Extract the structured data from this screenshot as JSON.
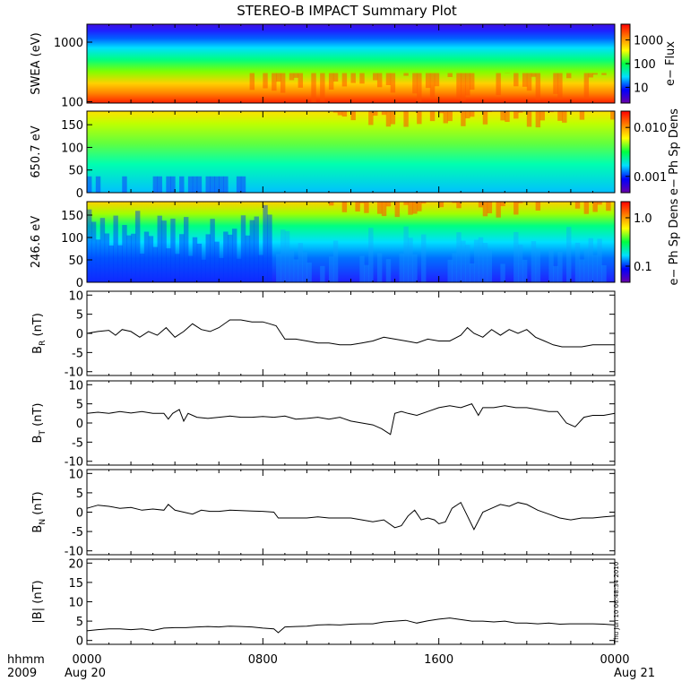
{
  "title": "STEREO-B IMPACT Summary Plot",
  "timestamp": "Thu Jun 10 06:48:34 2010",
  "bottom_labels": {
    "hhmm": "hhmm",
    "year": "2009",
    "start_day": "Aug 20",
    "end_day": "Aug 21"
  },
  "x_axis": {
    "ticks": [
      "0000",
      "0800",
      "1600",
      "0000"
    ],
    "range_hours": [
      0,
      24
    ]
  },
  "colors": {
    "line": "#000000",
    "colormap": [
      "#6a00a8",
      "#0000ff",
      "#00e0ff",
      "#00ff40",
      "#ffff00",
      "#ff8000",
      "#ff0000"
    ]
  },
  "chart_data": [
    {
      "type": "heatmap",
      "ylabel": "SWEA (eV)",
      "yscale": "log",
      "ylim": [
        95,
        2000
      ],
      "yticks": [
        "1000",
        "100"
      ],
      "colorbar": {
        "label": "e− Flux",
        "scale": "log",
        "ticks": [
          "1000",
          "100",
          "10"
        ]
      },
      "description_values": {
        "low_energy_flux": "high (orange-red)",
        "high_energy_flux": "low (blue)"
      }
    },
    {
      "type": "heatmap",
      "ylabel": "650.7 eV",
      "ylim": [
        0,
        180
      ],
      "yticks": [
        "150",
        "100",
        "50",
        "0"
      ],
      "colorbar": {
        "label": "e− Ph Sp Dens",
        "scale": "log",
        "ticks": [
          "0.010",
          "0.001"
        ]
      }
    },
    {
      "type": "heatmap",
      "ylabel": "246.6 eV",
      "ylim": [
        0,
        180
      ],
      "yticks": [
        "150",
        "100",
        "50",
        "0"
      ],
      "colorbar": {
        "label": "e− Ph Sp Dens",
        "scale": "log",
        "ticks": [
          "1.0",
          "0.1"
        ]
      }
    },
    {
      "type": "line",
      "ylabel_main": "B",
      "ylabel_sub": "R",
      "ylabel_unit": "(nT)",
      "ylim": [
        -11,
        11
      ],
      "yticks": [
        "10",
        "5",
        "0",
        "-5",
        "-10"
      ],
      "x": [
        0,
        0.5,
        1,
        1.3,
        1.6,
        2,
        2.4,
        2.8,
        3.2,
        3.6,
        4,
        4.4,
        4.8,
        5.2,
        5.6,
        6,
        6.5,
        7,
        7.5,
        8,
        8.3,
        8.6,
        9,
        9.5,
        10,
        10.5,
        11,
        11.5,
        12,
        12.5,
        13,
        13.5,
        14,
        14.5,
        15,
        15.5,
        16,
        16.5,
        17,
        17.3,
        17.6,
        18,
        18.4,
        18.8,
        19.2,
        19.6,
        20,
        20.4,
        20.8,
        21.2,
        21.6,
        22,
        22.5,
        23,
        23.5,
        24
      ],
      "y": [
        0,
        0.5,
        0.8,
        -0.5,
        1,
        0.5,
        -1,
        0.5,
        -0.5,
        1.5,
        -1,
        0.5,
        2.5,
        1,
        0.5,
        1.5,
        3.5,
        3.5,
        3,
        3,
        2.5,
        2,
        -1.5,
        -1.5,
        -2,
        -2.5,
        -2.5,
        -3,
        -3,
        -2.5,
        -2,
        -1,
        -1.5,
        -2,
        -2.5,
        -1.5,
        -2,
        -2,
        -0.5,
        1.5,
        0,
        -1,
        1,
        -0.5,
        1,
        0,
        1,
        -1,
        -2,
        -3,
        -3.5,
        -3.5,
        -3.5,
        -3,
        -3,
        -3
      ]
    },
    {
      "type": "line",
      "ylabel_main": "B",
      "ylabel_sub": "T",
      "ylabel_unit": "(nT)",
      "ylim": [
        -11,
        11
      ],
      "yticks": [
        "10",
        "5",
        "0",
        "-5",
        "-10"
      ],
      "x": [
        0,
        0.5,
        1,
        1.5,
        2,
        2.5,
        3,
        3.5,
        3.7,
        3.9,
        4.2,
        4.4,
        4.6,
        5,
        5.5,
        6,
        6.5,
        7,
        7.5,
        8,
        8.5,
        9,
        9.5,
        10,
        10.5,
        11,
        11.5,
        12,
        12.5,
        13,
        13.4,
        13.8,
        14,
        14.3,
        14.6,
        15,
        15.5,
        16,
        16.5,
        17,
        17.5,
        17.8,
        18,
        18.5,
        19,
        19.5,
        20,
        20.5,
        21,
        21.4,
        21.8,
        22.2,
        22.6,
        23,
        23.5,
        24
      ],
      "y": [
        2.5,
        2.8,
        2.5,
        3,
        2.6,
        3,
        2.5,
        2.5,
        1,
        2.5,
        3.5,
        0.5,
        2.5,
        1.5,
        1.2,
        1.5,
        1.8,
        1.5,
        1.5,
        1.7,
        1.5,
        1.8,
        1,
        1.2,
        1.5,
        1,
        1.5,
        0.5,
        0,
        -0.5,
        -1.5,
        -3,
        2.5,
        3,
        2.5,
        2,
        3,
        4,
        4.5,
        4,
        5,
        2,
        4,
        4,
        4.5,
        4,
        4,
        3.5,
        3,
        3,
        0,
        -1,
        1.5,
        2,
        2,
        2.5
      ]
    },
    {
      "type": "line",
      "ylabel_main": "B",
      "ylabel_sub": "N",
      "ylabel_unit": "(nT)",
      "ylim": [
        -11,
        11
      ],
      "yticks": [
        "10",
        "5",
        "0",
        "-5",
        "-10"
      ],
      "x": [
        0,
        0.5,
        1,
        1.5,
        2,
        2.5,
        3,
        3.5,
        3.7,
        4,
        4.4,
        4.8,
        5.2,
        5.6,
        6,
        6.5,
        7,
        7.5,
        8,
        8.5,
        8.7,
        9,
        9.5,
        10,
        10.5,
        11,
        11.5,
        12,
        12.5,
        13,
        13.5,
        14,
        14.3,
        14.6,
        14.9,
        15.2,
        15.5,
        15.8,
        16,
        16.3,
        16.6,
        17,
        17.3,
        17.6,
        18,
        18.4,
        18.8,
        19.2,
        19.6,
        20,
        20.5,
        21,
        21.5,
        22,
        22.5,
        23,
        23.5,
        24
      ],
      "y": [
        1,
        1.8,
        1.5,
        1,
        1.2,
        0.5,
        0.8,
        0.5,
        2,
        0.5,
        0,
        -0.5,
        0.5,
        0.2,
        0.2,
        0.5,
        0.4,
        0.3,
        0.2,
        0,
        -1.5,
        -1.5,
        -1.5,
        -1.5,
        -1.2,
        -1.5,
        -1.5,
        -1.5,
        -2,
        -2.5,
        -2,
        -4,
        -3.5,
        -1,
        0.5,
        -2,
        -1.5,
        -2,
        -3,
        -2.5,
        1,
        2.5,
        -1,
        -4.5,
        0,
        1,
        2,
        1.5,
        2.5,
        2,
        0.5,
        -0.5,
        -1.5,
        -2,
        -1.5,
        -1.5,
        -1.2,
        -1
      ]
    },
    {
      "type": "line",
      "ylabel_main": "|B|",
      "ylabel_unit": "(nT)",
      "ylim": [
        -1,
        21
      ],
      "yticks": [
        "20",
        "15",
        "10",
        "5",
        "0"
      ],
      "x": [
        0,
        0.5,
        1,
        1.5,
        2,
        2.5,
        3,
        3.5,
        4,
        4.5,
        5,
        5.5,
        6,
        6.5,
        7,
        7.5,
        8,
        8.5,
        8.7,
        9,
        9.5,
        10,
        10.5,
        11,
        11.5,
        12,
        12.5,
        13,
        13.5,
        14,
        14.5,
        15,
        15.5,
        16,
        16.5,
        17,
        17.5,
        18,
        18.5,
        19,
        19.5,
        20,
        20.5,
        21,
        21.5,
        22,
        22.5,
        23,
        23.5,
        24
      ],
      "y": [
        2.5,
        2.8,
        3,
        3,
        2.8,
        3,
        2.6,
        3.2,
        3.3,
        3.3,
        3.5,
        3.6,
        3.5,
        3.7,
        3.6,
        3.5,
        3.2,
        3,
        2,
        3.5,
        3.6,
        3.7,
        4,
        4.1,
        4,
        4.2,
        4.3,
        4.3,
        4.8,
        5,
        5.2,
        4.5,
        5.1,
        5.5,
        5.8,
        5.4,
        5,
        5,
        4.8,
        5,
        4.5,
        4.5,
        4.3,
        4.5,
        4.2,
        4.3,
        4.3,
        4.3,
        4.2,
        4
      ]
    }
  ]
}
